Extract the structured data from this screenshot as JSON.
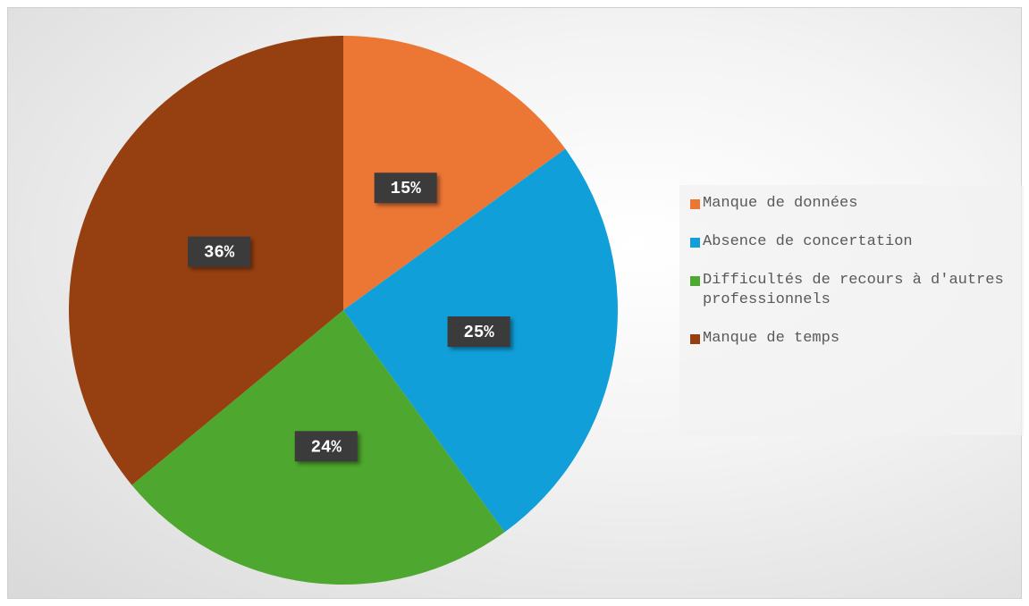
{
  "chart_data": {
    "type": "pie",
    "categories": [
      "Manque de données",
      "Absence de concertation",
      "Difficultés de recours à d'autres professionnels",
      "Manque de temps"
    ],
    "values": [
      15,
      25,
      24,
      36
    ],
    "value_labels": [
      "15%",
      "25%",
      "24%",
      "36%"
    ],
    "colors": [
      "#ec7634",
      "#109fd8",
      "#4ea72e",
      "#963f10"
    ],
    "legend": "right"
  }
}
